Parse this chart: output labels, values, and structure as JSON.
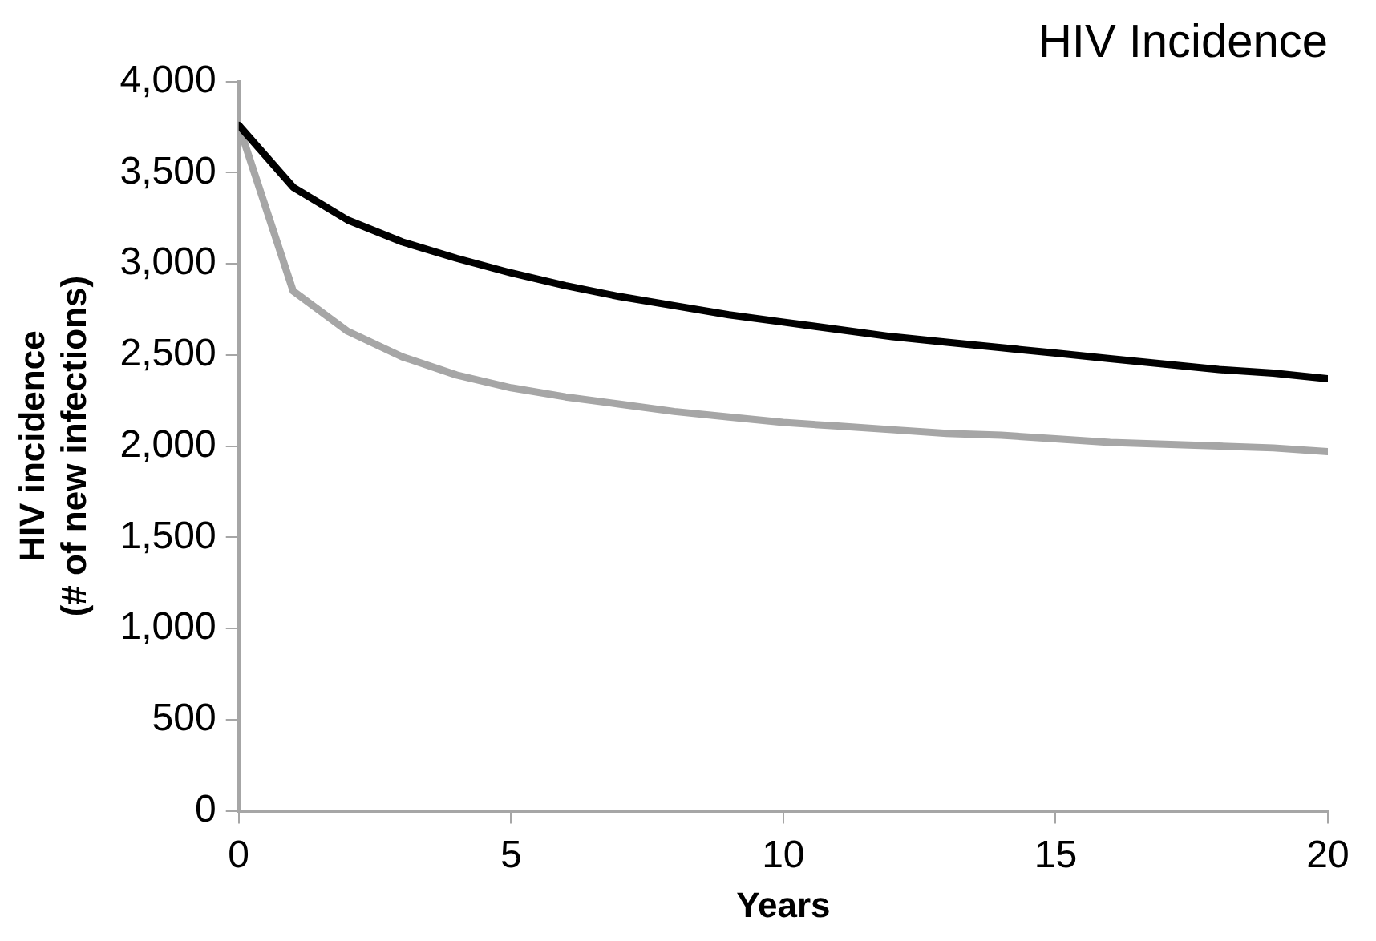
{
  "chart_data": {
    "type": "line",
    "title": "HIV Incidence",
    "xlabel": "Years",
    "ylabel": "HIV incidence\n(# of new infections)",
    "x": [
      0,
      1,
      2,
      3,
      4,
      5,
      6,
      7,
      8,
      9,
      10,
      11,
      12,
      13,
      14,
      15,
      16,
      17,
      18,
      19,
      20
    ],
    "series": [
      {
        "color": "#000000",
        "values": [
          3760,
          3420,
          3240,
          3120,
          3030,
          2950,
          2880,
          2820,
          2770,
          2720,
          2680,
          2640,
          2600,
          2570,
          2540,
          2510,
          2480,
          2450,
          2420,
          2400,
          2370
        ]
      },
      {
        "color": "#a6a6a6",
        "values": [
          3760,
          2850,
          2630,
          2490,
          2390,
          2320,
          2270,
          2230,
          2190,
          2160,
          2130,
          2110,
          2090,
          2070,
          2060,
          2040,
          2020,
          2010,
          2000,
          1990,
          1970
        ]
      }
    ],
    "xlim": [
      0,
      20
    ],
    "xticks": [
      0,
      5,
      10,
      15,
      20
    ],
    "ylim": [
      0,
      4000
    ],
    "yticks": [
      0,
      500,
      {
        "value": 1000,
        "label": "1,000"
      },
      {
        "value": 1500,
        "label": "1,500"
      },
      {
        "value": 2000,
        "label": "2,000"
      },
      {
        "value": 2500,
        "label": "2,500"
      },
      {
        "value": 3000,
        "label": "3,000"
      },
      {
        "value": 3500,
        "label": "3,500"
      },
      {
        "value": 4000,
        "label": "4,000"
      }
    ],
    "grid": false,
    "legend": false,
    "marker": "none",
    "line_style": "solid"
  }
}
